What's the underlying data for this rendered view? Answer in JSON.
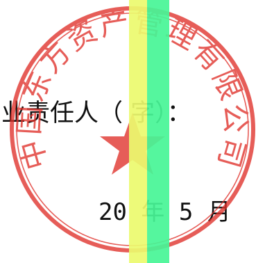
{
  "document": {
    "signer_line": "业责任人（   字）：",
    "date_line": "20   年 5 月"
  },
  "seal": {
    "text": "中国东方资产管理有限公司",
    "color": "#e0302a"
  },
  "overlay": {
    "band_colors": [
      "#ebfa6e",
      "#46f596"
    ]
  }
}
